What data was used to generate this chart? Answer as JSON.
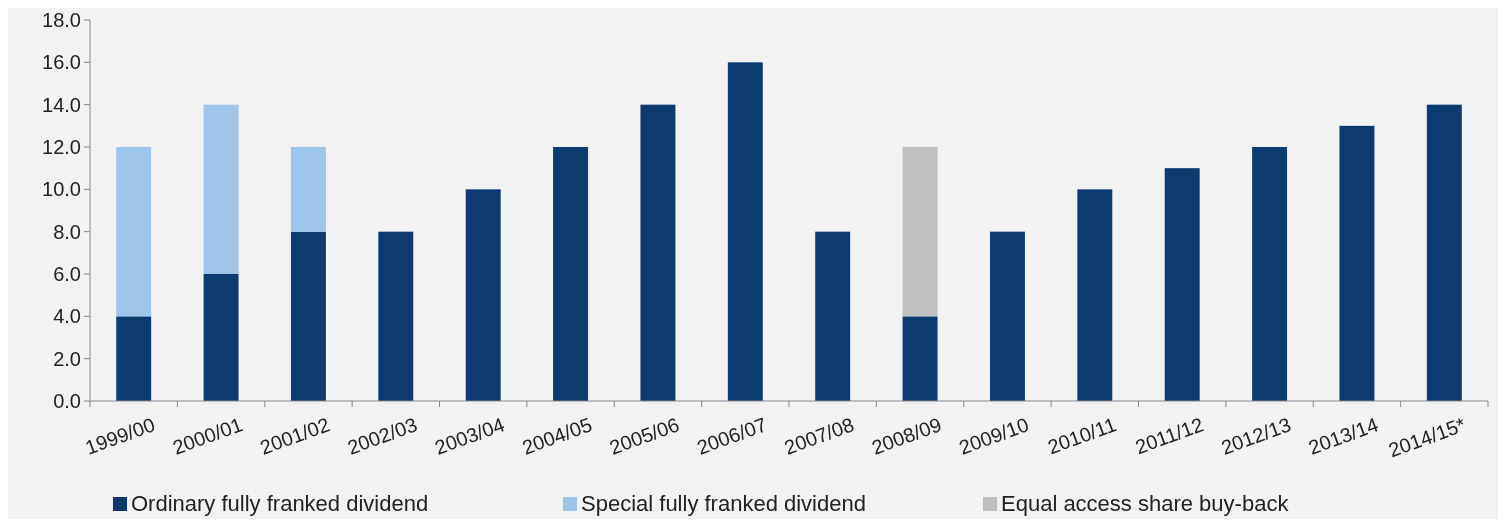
{
  "chart_data": {
    "type": "bar",
    "stacked": true,
    "legend": "bottom",
    "grid": false,
    "categories": [
      "1999/00",
      "2000/01",
      "2001/02",
      "2002/03",
      "2003/04",
      "2004/05",
      "2005/06",
      "2006/07",
      "2007/08",
      "2008/09",
      "2009/10",
      "2010/11",
      "2011/12",
      "2012/13",
      "2013/14",
      "2014/15*"
    ],
    "series": [
      {
        "name": "Ordinary fully franked dividend",
        "color": "#0e3b6f",
        "values": [
          4,
          6,
          8,
          8,
          10,
          12,
          14,
          16,
          8,
          4,
          8,
          10,
          11,
          12,
          13,
          14
        ]
      },
      {
        "name": "Special fully franked dividend",
        "color": "#9fc5ea",
        "values": [
          8,
          8,
          4,
          null,
          null,
          null,
          null,
          null,
          null,
          null,
          null,
          null,
          null,
          null,
          null,
          null
        ]
      },
      {
        "name": "Equal access share buy-back",
        "color": "#bfbfbf",
        "values": [
          null,
          null,
          null,
          null,
          null,
          null,
          null,
          null,
          null,
          8,
          null,
          null,
          null,
          null,
          null,
          null
        ]
      }
    ],
    "ylim": [
      0,
      18
    ],
    "yticks": [
      {
        "value": 0,
        "label": "0.0"
      },
      {
        "value": 2,
        "label": "2.0"
      },
      {
        "value": 4,
        "label": "4.0"
      },
      {
        "value": 6,
        "label": "6.0"
      },
      {
        "value": 8,
        "label": "8.0"
      },
      {
        "value": 10,
        "label": "10.0"
      },
      {
        "value": 12,
        "label": "12.0"
      },
      {
        "value": 14,
        "label": "14.0"
      },
      {
        "value": 16,
        "label": "16.0"
      },
      {
        "value": 18,
        "label": "18.0"
      }
    ]
  }
}
